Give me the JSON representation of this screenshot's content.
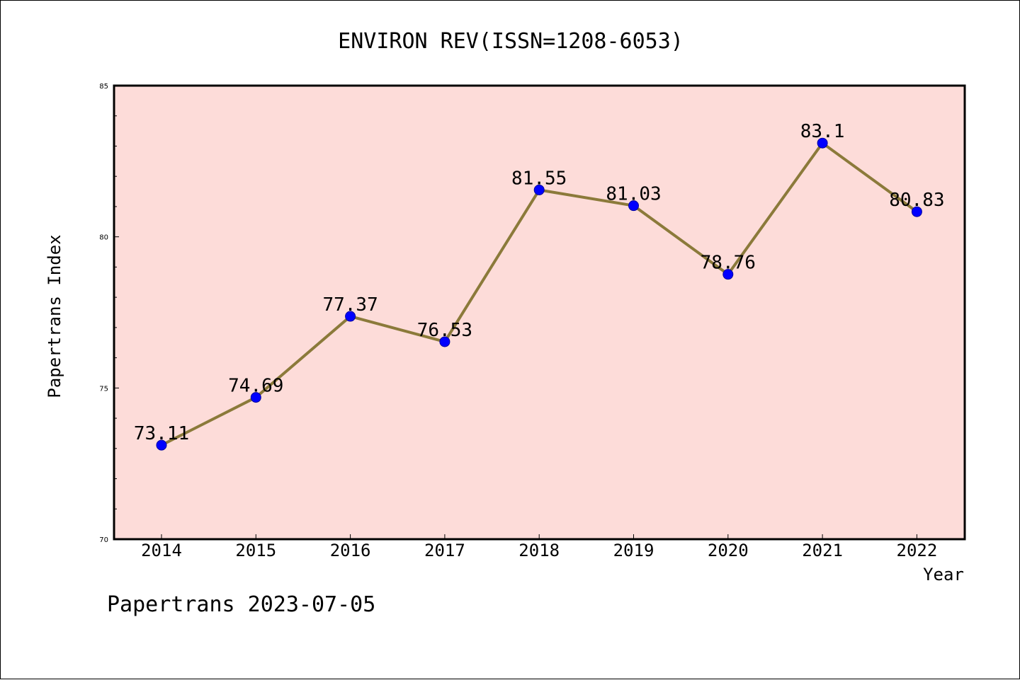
{
  "chart_data": {
    "type": "line",
    "title": "ENVIRON REV(ISSN=1208-6053)",
    "xlabel": "Year",
    "ylabel": "Papertrans Index",
    "categories": [
      "2014",
      "2015",
      "2016",
      "2017",
      "2018",
      "2019",
      "2020",
      "2021",
      "2022"
    ],
    "values": [
      73.11,
      74.69,
      77.37,
      76.53,
      81.55,
      81.03,
      78.76,
      83.1,
      80.83
    ],
    "data_labels": [
      "73.11",
      "74.69",
      "77.37",
      "76.53",
      "81.55",
      "81.03",
      "78.76",
      "83.1",
      "80.83"
    ],
    "ylim": [
      70,
      85
    ],
    "yticks": [
      "70",
      "75",
      "80",
      "85"
    ],
    "grid": false,
    "legend": "none",
    "colors": {
      "plot_background": "#fddcd9",
      "line": "#8b7a3a",
      "marker": "#0000ff",
      "marker_edge": "#0000a0"
    }
  },
  "footer": "Papertrans 2023-07-05"
}
